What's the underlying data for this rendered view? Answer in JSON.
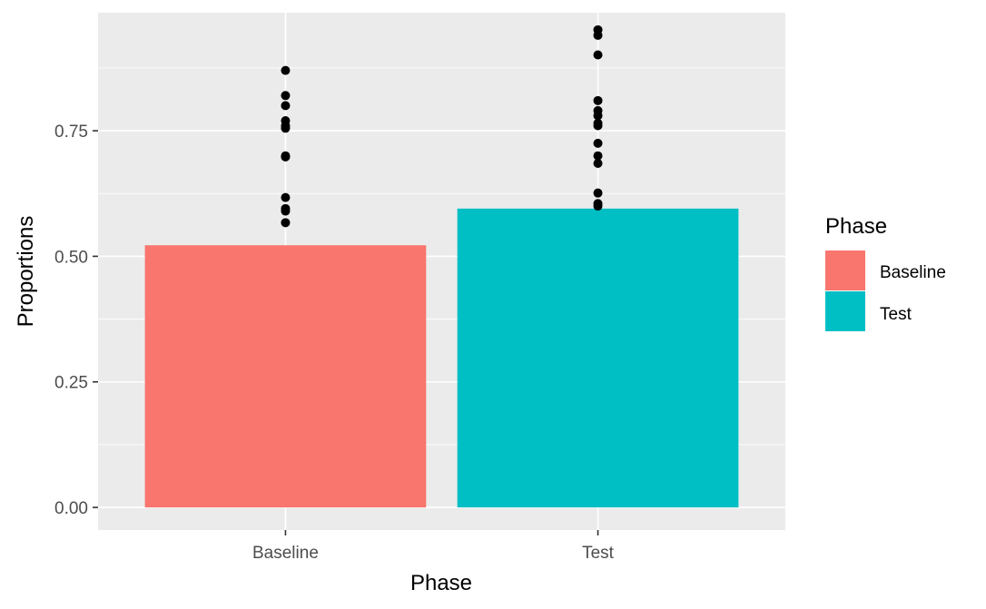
{
  "chart_data": {
    "type": "bar",
    "title": "",
    "xlabel": "Phase",
    "ylabel": "Proportions",
    "categories": [
      "Baseline",
      "Test"
    ],
    "values": [
      0.522,
      0.595
    ],
    "ylim": [
      -0.045,
      0.985
    ],
    "yticks": [
      {
        "value": 0.0,
        "label": "0.00"
      },
      {
        "value": 0.25,
        "label": "0.25"
      },
      {
        "value": 0.5,
        "label": "0.50"
      },
      {
        "value": 0.75,
        "label": "0.75"
      }
    ],
    "grid": true,
    "points": [
      {
        "category": "Baseline",
        "values": [
          0.87,
          0.82,
          0.8,
          0.77,
          0.76,
          0.755,
          0.7,
          0.698,
          0.617,
          0.595,
          0.59,
          0.567
        ]
      },
      {
        "category": "Test",
        "values": [
          0.951,
          0.94,
          0.901,
          0.81,
          0.79,
          0.78,
          0.765,
          0.76,
          0.725,
          0.7,
          0.685,
          0.626,
          0.605,
          0.6
        ]
      }
    ],
    "legend": {
      "title": "Phase",
      "position": "right",
      "entries": [
        {
          "label": "Baseline",
          "color": "#F8766D"
        },
        {
          "label": "Test",
          "color": "#00BFC4"
        }
      ]
    },
    "colors": {
      "Baseline": "#F8766D",
      "Test": "#00BFC4",
      "panel": "#EBEBEB",
      "grid": "#FFFFFF",
      "point": "#000000"
    }
  }
}
